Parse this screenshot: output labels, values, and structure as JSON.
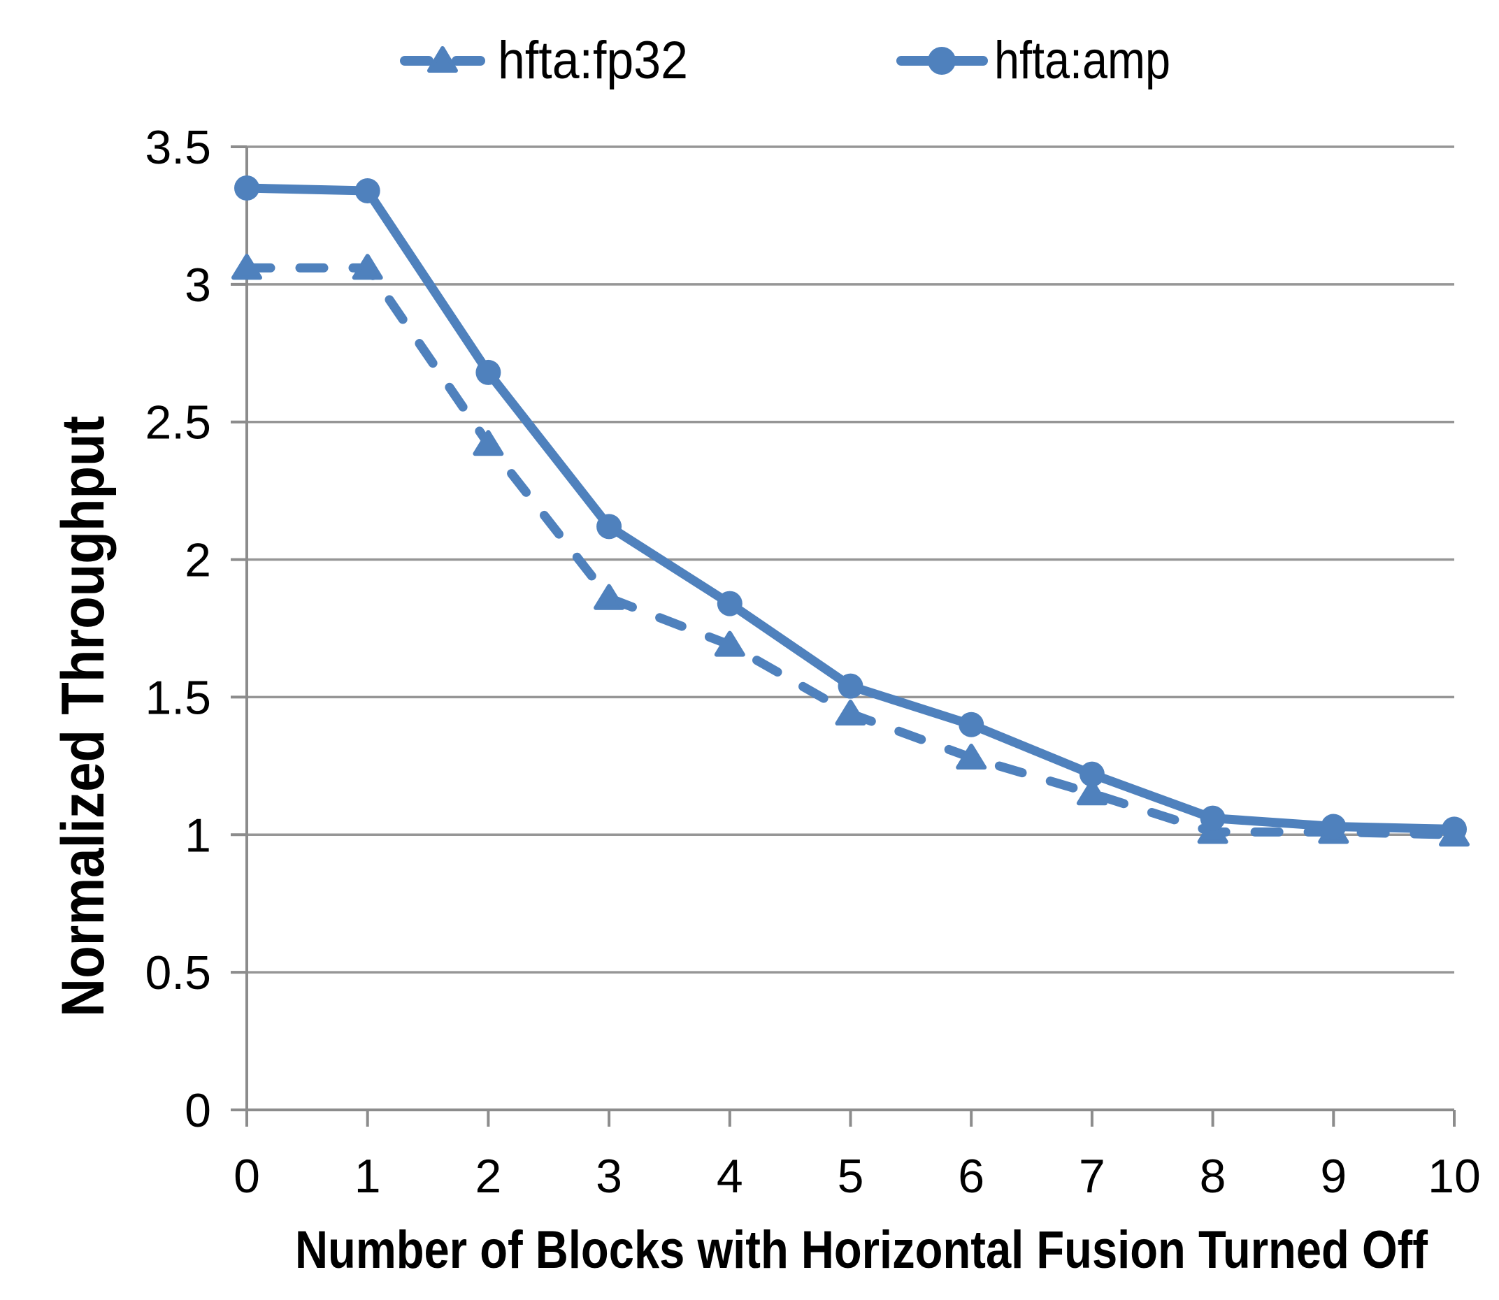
{
  "chart_data": {
    "type": "line",
    "title": "",
    "xlabel": "Number of Blocks with Horizontal Fusion Turned Off",
    "ylabel": "Normalized Throughput",
    "x": [
      0,
      1,
      2,
      3,
      4,
      5,
      6,
      7,
      8,
      9,
      10
    ],
    "series": [
      {
        "name": "hfta:fp32",
        "style": "dashed",
        "marker": "triangle",
        "values": [
          3.06,
          3.06,
          2.42,
          1.86,
          1.69,
          1.44,
          1.28,
          1.15,
          1.01,
          1.01,
          1.0
        ]
      },
      {
        "name": "hfta:amp",
        "style": "solid",
        "marker": "circle",
        "values": [
          3.35,
          3.34,
          2.68,
          2.12,
          1.84,
          1.54,
          1.4,
          1.22,
          1.06,
          1.03,
          1.02
        ]
      }
    ],
    "ylim": [
      0,
      3.5
    ],
    "yticks": [
      0,
      0.5,
      1,
      1.5,
      2,
      2.5,
      3,
      3.5
    ],
    "xticks": [
      0,
      1,
      2,
      3,
      4,
      5,
      6,
      7,
      8,
      9,
      10
    ],
    "grid": true,
    "legend_position": "top",
    "colors": {
      "series": "#4F81BD",
      "gridline": "#969696",
      "axis": "#8C8C8C",
      "text": "#000000"
    }
  },
  "legend": {
    "items": [
      {
        "label": "hfta:fp32"
      },
      {
        "label": "hfta:amp"
      }
    ]
  }
}
